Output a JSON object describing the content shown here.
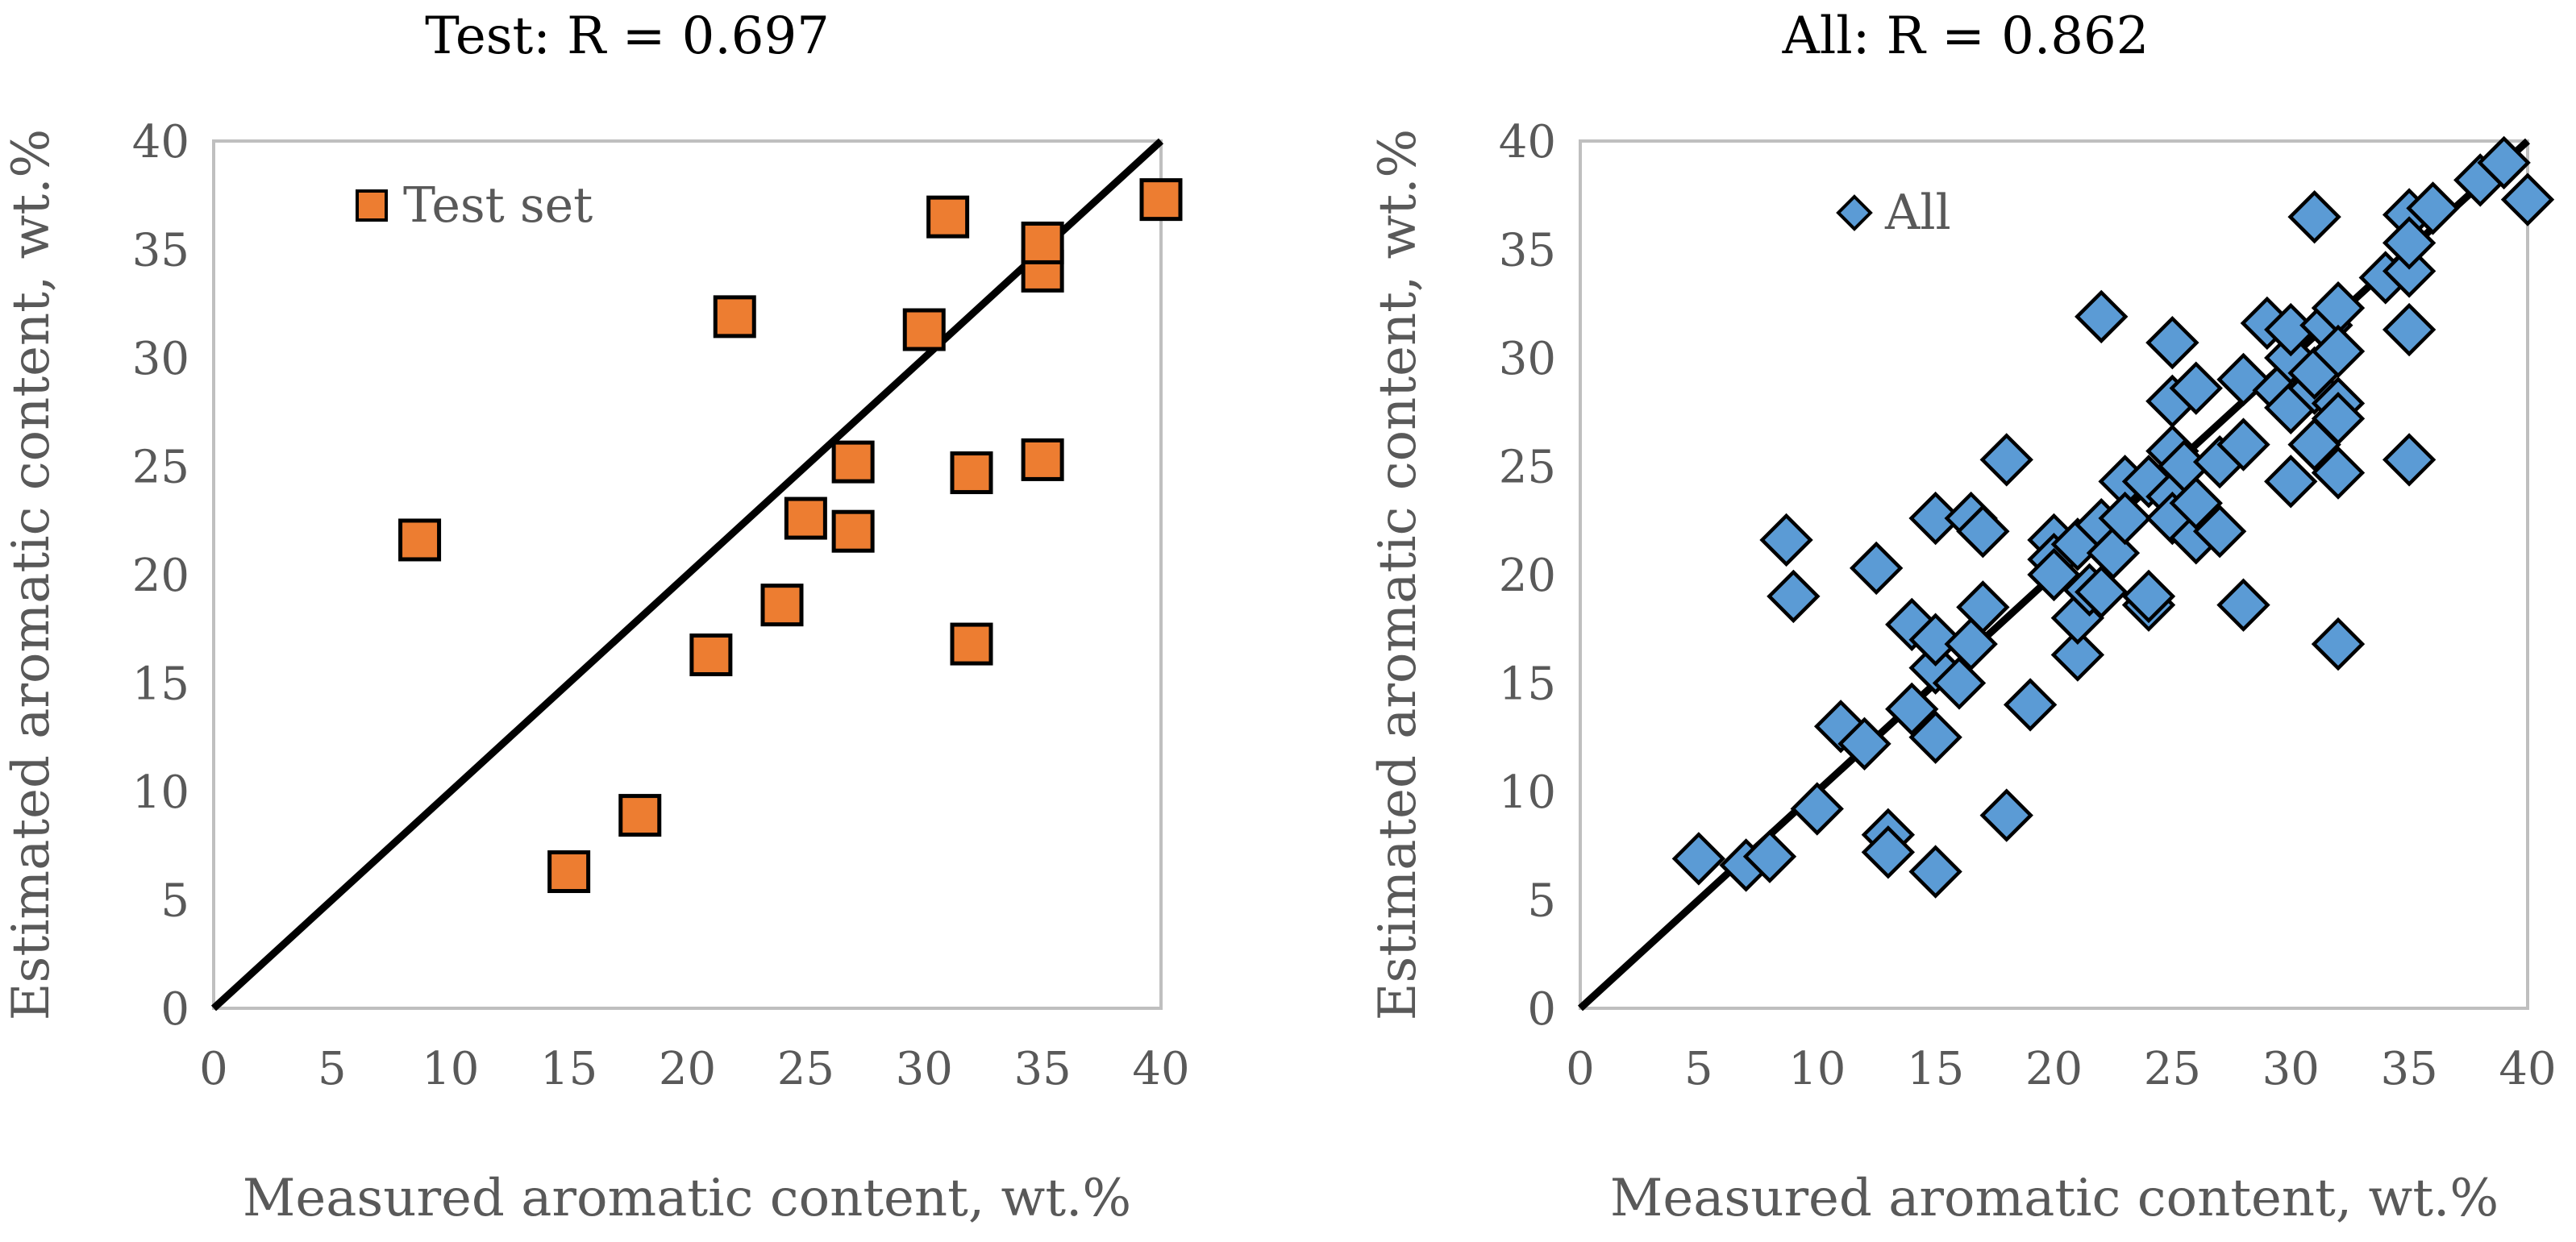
{
  "chart_data": [
    {
      "type": "scatter",
      "title": "Test: R = 0.697",
      "xlabel": "Measured aromatic content, wt.%",
      "ylabel": "Estimated aromatic content, wt.%",
      "xlim": [
        0,
        40
      ],
      "ylim": [
        0,
        40
      ],
      "xticks": [
        "0",
        "5",
        "10",
        "15",
        "20",
        "25",
        "30",
        "35",
        "40"
      ],
      "yticks": [
        "0",
        "5",
        "10",
        "15",
        "20",
        "25",
        "30",
        "35",
        "40"
      ],
      "legend_position": "top-left",
      "grid": false,
      "identity_line": {
        "from": [
          0,
          0
        ],
        "to": [
          40,
          40
        ]
      },
      "series": [
        {
          "name": "Test set",
          "marker": "square",
          "color": "#ED7D31",
          "edge_color": "#000000",
          "points": [
            [
              8.7,
              21.6
            ],
            [
              15,
              6.3
            ],
            [
              18,
              8.9
            ],
            [
              21,
              16.3
            ],
            [
              22,
              31.9
            ],
            [
              24,
              18.6
            ],
            [
              25,
              22.6
            ],
            [
              27,
              22
            ],
            [
              27,
              25.2
            ],
            [
              30,
              31.3
            ],
            [
              31,
              36.5
            ],
            [
              32,
              24.7
            ],
            [
              32,
              16.8
            ],
            [
              35,
              25.3
            ],
            [
              35,
              34
            ],
            [
              35,
              35.3
            ],
            [
              40,
              37.3
            ]
          ]
        }
      ]
    },
    {
      "type": "scatter",
      "title": "All: R = 0.862",
      "xlabel": "Measured aromatic content, wt.%",
      "ylabel": "Estimated aromatic content, wt.%",
      "xlim": [
        0,
        40
      ],
      "ylim": [
        0,
        40
      ],
      "xticks": [
        "0",
        "5",
        "10",
        "15",
        "20",
        "25",
        "30",
        "35",
        "40"
      ],
      "yticks": [
        "0",
        "5",
        "10",
        "15",
        "20",
        "25",
        "30",
        "35",
        "40"
      ],
      "legend_position": "top-left",
      "grid": false,
      "identity_line": {
        "from": [
          0,
          0
        ],
        "to": [
          40,
          40
        ]
      },
      "series": [
        {
          "name": "All",
          "marker": "diamond",
          "color": "#5B9BD5",
          "edge_color": "#000000",
          "points": [
            [
              5,
              6.9
            ],
            [
              7,
              6.6
            ],
            [
              8,
              7
            ],
            [
              8.7,
              21.6
            ],
            [
              9,
              19
            ],
            [
              10,
              9.2
            ],
            [
              11,
              13
            ],
            [
              12,
              12.2
            ],
            [
              12.5,
              20.3
            ],
            [
              13,
              8
            ],
            [
              13,
              7.2
            ],
            [
              14,
              13.8
            ],
            [
              14,
              17.7
            ],
            [
              15,
              6.3
            ],
            [
              15,
              15.7
            ],
            [
              15,
              12.5
            ],
            [
              15,
              17
            ],
            [
              15,
              22.6
            ],
            [
              16,
              15
            ],
            [
              16.5,
              16.8
            ],
            [
              16.5,
              22.6
            ],
            [
              17,
              22
            ],
            [
              17,
              18.5
            ],
            [
              18,
              8.9
            ],
            [
              18,
              25.3
            ],
            [
              19,
              14
            ],
            [
              20,
              21.6
            ],
            [
              20,
              20.7
            ],
            [
              20,
              20
            ],
            [
              21,
              16.3
            ],
            [
              21,
              18
            ],
            [
              21,
              21.4
            ],
            [
              21.5,
              19.3
            ],
            [
              22,
              31.9
            ],
            [
              22,
              19.2
            ],
            [
              22,
              22.3
            ],
            [
              22.5,
              21
            ],
            [
              23,
              24.3
            ],
            [
              23,
              22.6
            ],
            [
              24,
              18.6
            ],
            [
              24,
              19
            ],
            [
              24,
              24.3
            ],
            [
              25,
              30.7
            ],
            [
              25,
              28
            ],
            [
              25,
              25.7
            ],
            [
              25,
              23.6
            ],
            [
              25,
              22.6
            ],
            [
              25.5,
              25
            ],
            [
              26,
              28.6
            ],
            [
              26,
              21.7
            ],
            [
              26,
              23.3
            ],
            [
              27,
              22
            ],
            [
              27,
              25.2
            ],
            [
              28,
              26
            ],
            [
              28,
              29
            ],
            [
              28,
              18.6
            ],
            [
              29,
              31.6
            ],
            [
              29.5,
              28.5
            ],
            [
              30,
              30
            ],
            [
              30,
              31.3
            ],
            [
              30,
              27.7
            ],
            [
              30,
              24.3
            ],
            [
              31,
              36.5
            ],
            [
              31,
              26
            ],
            [
              31,
              28.6
            ],
            [
              31,
              29.3
            ],
            [
              31.5,
              31.5
            ],
            [
              32,
              32.3
            ],
            [
              32,
              30.3
            ],
            [
              32,
              27.9
            ],
            [
              32,
              27.2
            ],
            [
              32,
              24.7
            ],
            [
              32,
              16.8
            ],
            [
              34,
              33.7
            ],
            [
              35,
              36.6
            ],
            [
              35,
              34
            ],
            [
              35,
              35.3
            ],
            [
              35,
              31.3
            ],
            [
              35,
              25.3
            ],
            [
              36,
              36.9
            ],
            [
              38,
              38.2
            ],
            [
              39,
              39
            ],
            [
              40,
              37.3
            ]
          ]
        }
      ]
    }
  ]
}
